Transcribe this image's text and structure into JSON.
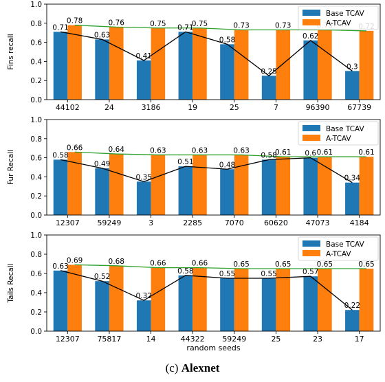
{
  "caption": {
    "prefix": "(c) ",
    "name": "Alexnet"
  },
  "chart_data": [
    {
      "type": "bar",
      "ylabel": "Fins recall",
      "xlabel": "",
      "ylim": [
        0.0,
        1.0
      ],
      "yticks": [
        "0.0",
        "0.2",
        "0.4",
        "0.6",
        "0.8",
        "1.0"
      ],
      "categories": [
        "44102",
        "24",
        "3186",
        "19",
        "25",
        "7",
        "96390",
        "67739"
      ],
      "series": [
        {
          "name": "Base TCAV",
          "color": "#1f77b4",
          "values": [
            0.71,
            0.63,
            0.41,
            0.71,
            0.58,
            0.25,
            0.62,
            0.3
          ],
          "labels": [
            "0.71",
            "0.63",
            "0.41",
            "0.71",
            "0.58",
            "0.25",
            "0.62",
            "0.3"
          ]
        },
        {
          "name": "A-TCAV",
          "color": "#ff7f0e",
          "values": [
            0.78,
            0.76,
            0.75,
            0.75,
            0.73,
            0.73,
            0.73,
            0.72
          ],
          "labels": [
            "0.78",
            "0.76",
            "0.75",
            "0.75",
            "0.73",
            "0.73",
            "0.73",
            "0.72"
          ]
        }
      ],
      "legend": "top-right"
    },
    {
      "type": "bar",
      "ylabel": "Fur Recall",
      "xlabel": "",
      "ylim": [
        0.0,
        1.0
      ],
      "yticks": [
        "0.0",
        "0.2",
        "0.4",
        "0.6",
        "0.8",
        "1.0"
      ],
      "categories": [
        "12307",
        "59249",
        "3",
        "2285",
        "7070",
        "60620",
        "47073",
        "4184"
      ],
      "series": [
        {
          "name": "Base TCAV",
          "color": "#1f77b4",
          "values": [
            0.58,
            0.49,
            0.35,
            0.51,
            0.48,
            0.58,
            0.6,
            0.34
          ],
          "labels": [
            "0.58",
            "0.49",
            "0.35",
            "0.51",
            "0.48",
            "0.58",
            "0.6",
            "0.34"
          ]
        },
        {
          "name": "A-TCAV",
          "color": "#ff7f0e",
          "values": [
            0.66,
            0.64,
            0.63,
            0.63,
            0.63,
            0.61,
            0.61,
            0.61
          ],
          "labels": [
            "0.66",
            "0.64",
            "0.63",
            "0.63",
            "0.63",
            "0.61",
            "0.61",
            "0.61"
          ]
        }
      ],
      "legend": "top-right"
    },
    {
      "type": "bar",
      "ylabel": "Tails Recall",
      "xlabel": "random seeds",
      "ylim": [
        0.0,
        1.0
      ],
      "yticks": [
        "0.0",
        "0.2",
        "0.4",
        "0.6",
        "0.8",
        "1.0"
      ],
      "categories": [
        "12307",
        "75817",
        "14",
        "44322",
        "59249",
        "25",
        "23",
        "17"
      ],
      "series": [
        {
          "name": "Base TCAV",
          "color": "#1f77b4",
          "values": [
            0.63,
            0.52,
            0.32,
            0.58,
            0.55,
            0.55,
            0.57,
            0.22
          ],
          "labels": [
            "0.63",
            "0.52",
            "0.32",
            "0.58",
            "0.55",
            "0.55",
            "0.57",
            "0.22"
          ]
        },
        {
          "name": "A-TCAV",
          "color": "#ff7f0e",
          "values": [
            0.69,
            0.68,
            0.66,
            0.66,
            0.65,
            0.65,
            0.65,
            0.65
          ],
          "labels": [
            "0.69",
            "0.68",
            "0.66",
            "0.66",
            "0.65",
            "0.65",
            "0.65",
            "0.65"
          ]
        }
      ],
      "legend": "top-right"
    }
  ]
}
